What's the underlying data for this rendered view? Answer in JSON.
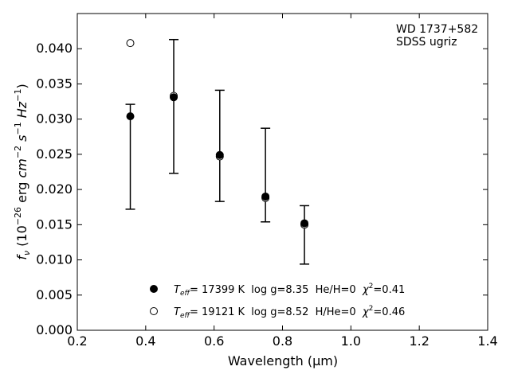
{
  "chart_data": {
    "type": "scatter",
    "xlabel": "Wavelength (μm)",
    "ylabel_parts": {
      "f": "f",
      "nu": "ν",
      "open": " (10",
      "exp1": "−26",
      "erg": " erg ",
      "cm": "cm",
      "exp2": "−2",
      "s": " s",
      "exp3": "−1",
      "hz": " Hz",
      "exp4": "−1",
      "close": ")"
    },
    "xlim": [
      0.2,
      1.4
    ],
    "ylim": [
      0.0,
      0.045
    ],
    "xticks": [
      "0.2",
      "0.4",
      "0.6",
      "0.8",
      "1.0",
      "1.2",
      "1.4"
    ],
    "yticks": [
      "0.000",
      "0.005",
      "0.010",
      "0.015",
      "0.020",
      "0.025",
      "0.030",
      "0.035",
      "0.040"
    ],
    "annotation": [
      "WD 1737+582",
      "SDSS ugriz"
    ],
    "grid": false,
    "observed": {
      "x": [
        0.355,
        0.482,
        0.6166,
        0.7502,
        0.8642
      ],
      "y_upper": [
        0.0321,
        0.0413,
        0.0341,
        0.0287,
        0.0177
      ],
      "y_lower": [
        0.0172,
        0.0223,
        0.0183,
        0.0154,
        0.0094
      ]
    },
    "series": [
      {
        "marker": "filled-circle",
        "x": [
          0.355,
          0.482,
          0.6166,
          0.7502,
          0.8642
        ],
        "y": [
          0.0304,
          0.0331,
          0.0249,
          0.019,
          0.0152
        ]
      },
      {
        "marker": "open-circle",
        "x": [
          0.355,
          0.482,
          0.6166,
          0.7502,
          0.8642
        ],
        "y": [
          0.0408,
          0.0333,
          0.0247,
          0.0188,
          0.015
        ]
      }
    ],
    "legend": [
      {
        "marker": "filled-circle",
        "t": "T",
        "t_sub": "eff",
        "rest": "= 17399 K  log g=8.35  He/H=0  ",
        "chi": "χ",
        "chi_sup": "2",
        "chi_val": "=0.41"
      },
      {
        "marker": "open-circle",
        "t": "T",
        "t_sub": "eff",
        "rest": "= 19121 K  log g=8.52  H/He=0  ",
        "chi": "χ",
        "chi_sup": "2",
        "chi_val": "=0.46"
      }
    ],
    "legend_position": "lower-center"
  }
}
